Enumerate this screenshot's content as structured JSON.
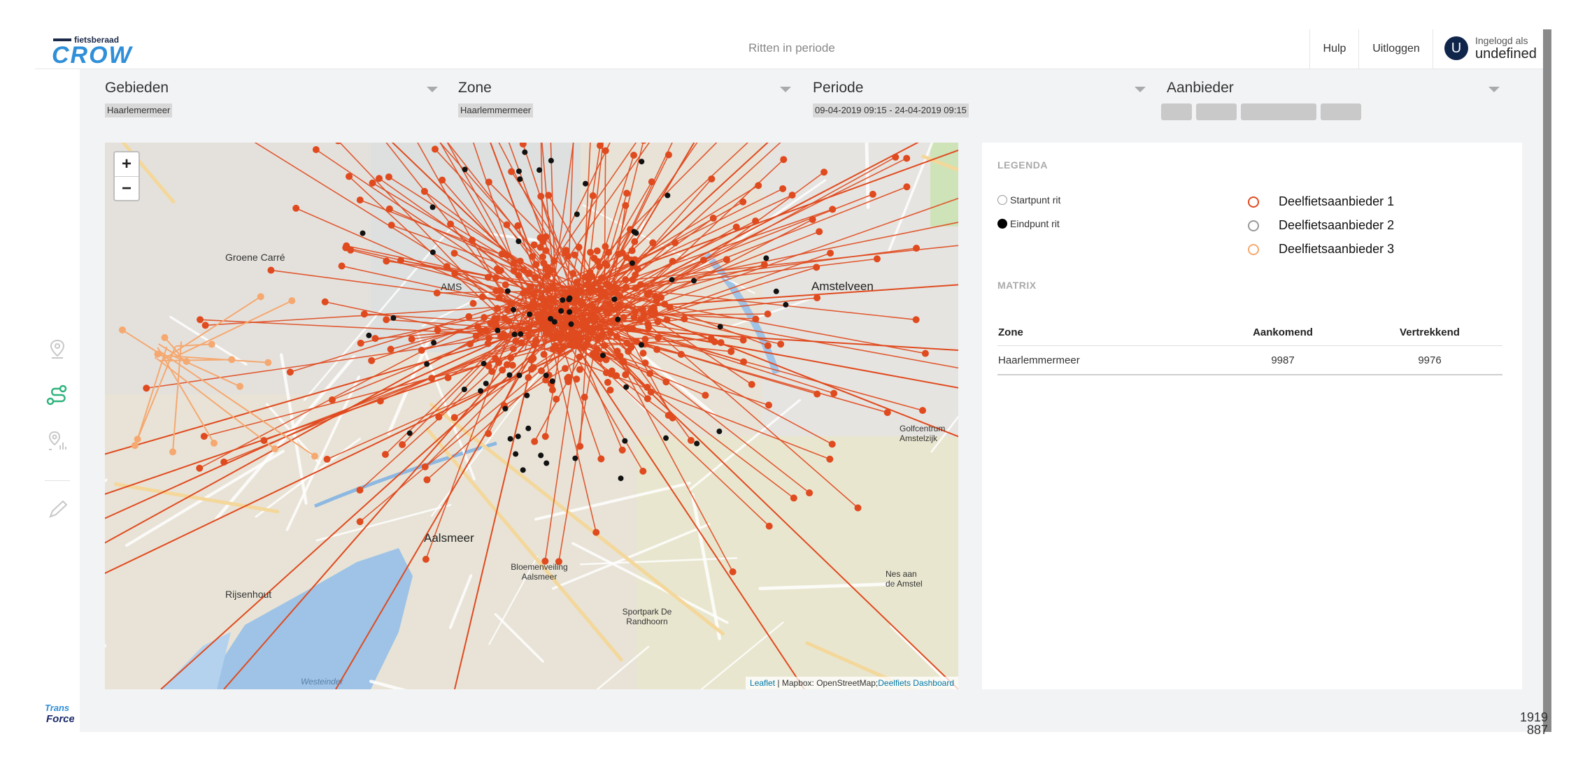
{
  "header": {
    "logo_small": "fietsberaad",
    "logo_main": "CROW",
    "page_title": "Ritten in periode",
    "help_label": "Hulp",
    "logout_label": "Uitloggen",
    "avatar_initial": "U",
    "logged_in_label": "Ingelogd als",
    "user_name": "undefined"
  },
  "sidebar": {
    "icons": [
      "location-pin-icon",
      "route-icon",
      "location-stats-icon",
      "pen-icon"
    ],
    "footer_logo": "TransForce"
  },
  "filters": [
    {
      "label": "Gebieden",
      "chips": [
        "Haarlemermeer"
      ]
    },
    {
      "label": "Zone",
      "chips": [
        "Haarlemmermeer"
      ]
    },
    {
      "label": "Periode",
      "chips": [
        "09-04-2019 09:15 - 24-04-2019 09:15"
      ]
    },
    {
      "label": "Aanbieder",
      "chips": [
        "",
        "",
        "",
        ""
      ]
    }
  ],
  "map": {
    "zoom_in": "+",
    "zoom_out": "−",
    "attribution_leaflet": "Leaflet",
    "attribution_rest": " | Mapbox: OpenStreetMap;",
    "attribution_brand": "Deelfiets Dashboard",
    "labels": {
      "aalsmeer": "Aalsmeer",
      "rijsenhout": "Rijsenhout",
      "amstelveen": "Amstelveen",
      "groene_carre": "Groene Carré",
      "bloemenveiling": "Bloemenveiling Aalsmeer",
      "sportpark": "Sportpark De Randhoorn",
      "ams": "AMS",
      "nes": "Nes aan de Amstel",
      "golf": "Golfcentrum Amstelzijk",
      "westeinder": "Westeinder"
    },
    "colors": {
      "route": "#e04a1f",
      "route_light": "#f5a870",
      "endpoint": "#111111"
    }
  },
  "legend": {
    "title": "LEGENDA",
    "start_label": "Startpunt rit",
    "end_label": "Eindpunt rit",
    "providers": [
      {
        "label": "Deelfietsaanbieder 1",
        "color": "#e04a1f"
      },
      {
        "label": "Deelfietsaanbieder 2",
        "color": "#999999"
      },
      {
        "label": "Deelfietsaanbieder 3",
        "color": "#f5a870"
      }
    ]
  },
  "matrix": {
    "title": "MATRIX",
    "headers": [
      "Zone",
      "Aankomend",
      "Vertrekkend"
    ],
    "rows": [
      [
        "Haarlemmermeer",
        "9987",
        "9976"
      ]
    ]
  },
  "corner": {
    "line1": "1919",
    "line2": "887"
  }
}
